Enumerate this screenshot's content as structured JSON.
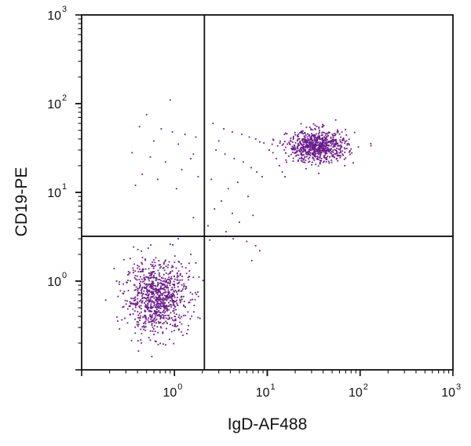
{
  "chart_data": {
    "type": "scatter",
    "title": "",
    "xlabel": "IgD-AF488",
    "ylabel": "CD19-PE",
    "x_scale": "log",
    "y_scale": "log",
    "xlim": [
      0.1,
      1000
    ],
    "ylim": [
      0.1,
      1000
    ],
    "x_ticks": [
      {
        "base": "10",
        "exp": "0",
        "value": 1
      },
      {
        "base": "10",
        "exp": "1",
        "value": 10
      },
      {
        "base": "10",
        "exp": "2",
        "value": 100
      },
      {
        "base": "10",
        "exp": "3",
        "value": 1000
      }
    ],
    "y_ticks": [
      {
        "base": "10",
        "exp": "0",
        "value": 1
      },
      {
        "base": "10",
        "exp": "1",
        "value": 10
      },
      {
        "base": "10",
        "exp": "2",
        "value": 100
      },
      {
        "base": "10",
        "exp": "3",
        "value": 1000
      }
    ],
    "quadrant_gates": {
      "x": 2.1,
      "y": 3.2
    },
    "point_color": "#6a1a8c",
    "axis_color": "#111111",
    "grid": false,
    "series": [
      {
        "clusters": [
          {
            "center_x": 0.65,
            "center_y": 0.65,
            "spread_log_x": 0.17,
            "spread_log_y": 0.2,
            "count": 900
          },
          {
            "center_x": 35,
            "center_y": 33,
            "spread_log_x": 0.16,
            "spread_log_y": 0.09,
            "count": 750
          }
        ],
        "scattered_points": [
          [
            0.9,
            110
          ],
          [
            0.5,
            75
          ],
          [
            0.42,
            55
          ],
          [
            0.72,
            52
          ],
          [
            0.95,
            48
          ],
          [
            1.3,
            45
          ],
          [
            1.7,
            42
          ],
          [
            0.6,
            38
          ],
          [
            1.1,
            35
          ],
          [
            0.35,
            28
          ],
          [
            0.55,
            25
          ],
          [
            1.5,
            24
          ],
          [
            0.8,
            22
          ],
          [
            1.2,
            18
          ],
          [
            0.45,
            16
          ],
          [
            1.8,
            15
          ],
          [
            0.66,
            14
          ],
          [
            0.38,
            12
          ],
          [
            1.05,
            11
          ],
          [
            1.6,
            27
          ],
          [
            2.6,
            60
          ],
          [
            3.4,
            52
          ],
          [
            4.2,
            48
          ],
          [
            5.3,
            45
          ],
          [
            6.4,
            42
          ],
          [
            7.5,
            40
          ],
          [
            8.3,
            37
          ],
          [
            9.2,
            36
          ],
          [
            10.5,
            30
          ],
          [
            11.5,
            28
          ],
          [
            12.5,
            24
          ],
          [
            13.5,
            20
          ],
          [
            14.5,
            17
          ],
          [
            15.5,
            15
          ],
          [
            3.0,
            38
          ],
          [
            2.8,
            30
          ],
          [
            3.5,
            27
          ],
          [
            4.4,
            24
          ],
          [
            5.5,
            22
          ],
          [
            6.7,
            19
          ],
          [
            7.7,
            17
          ],
          [
            8.8,
            15
          ],
          [
            4.8,
            13
          ],
          [
            3.8,
            11
          ],
          [
            2.5,
            14
          ],
          [
            6.2,
            9
          ],
          [
            3.2,
            8
          ],
          [
            2.7,
            6.5
          ],
          [
            4.2,
            5.8
          ],
          [
            7.0,
            5.5
          ],
          [
            5.0,
            4.6
          ],
          [
            2.3,
            4.2
          ],
          [
            1.6,
            5.2
          ],
          [
            3.6,
            3.6
          ],
          [
            6.0,
            2.8
          ],
          [
            7.5,
            2.5
          ],
          [
            8.3,
            2.2
          ],
          [
            6.8,
            1.7
          ],
          [
            2.4,
            2.9
          ],
          [
            4.3,
            3.0
          ],
          [
            1.5,
            2.0
          ],
          [
            1.1,
            3.0
          ],
          [
            1.7,
            1.6
          ],
          [
            0.9,
            2.6
          ],
          [
            1.45,
            1.3
          ],
          [
            0.4,
            1.5
          ]
        ]
      }
    ]
  }
}
